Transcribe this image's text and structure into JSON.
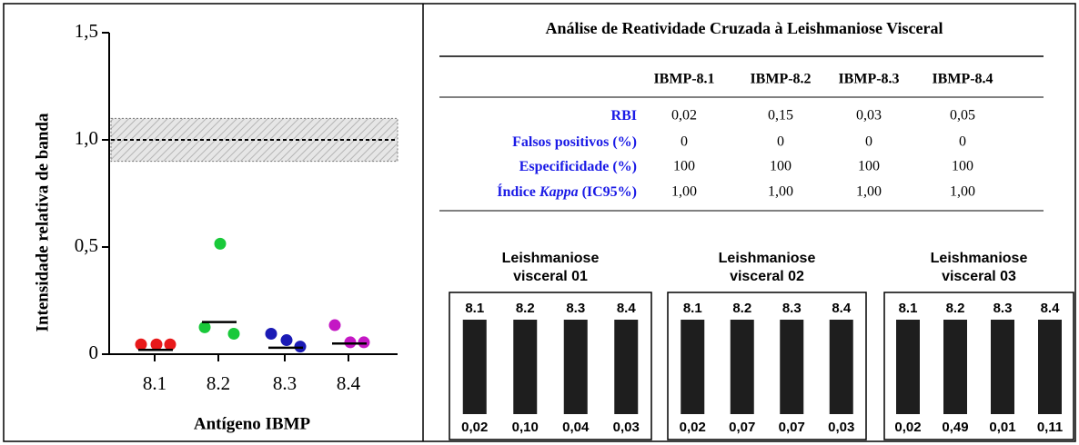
{
  "chart_data": {
    "type": "scatter",
    "y_label": "Intensidade relativa de banda",
    "x_label": "Antígeno IBMP",
    "categories": [
      "8.1",
      "8.2",
      "8.3",
      "8.4"
    ],
    "points": [
      [
        0.02,
        0.02,
        0.02
      ],
      [
        0.1,
        0.49,
        0.07
      ],
      [
        0.07,
        0.04,
        0.01
      ],
      [
        0.11,
        0.03,
        0.03
      ]
    ],
    "colors": [
      "#e8191a",
      "#19c93a",
      "#1a1ab5",
      "#c417c4"
    ],
    "means": [
      0.02,
      0.15,
      0.03,
      0.05
    ],
    "reference_line": 1.0,
    "reference_band": [
      0.9,
      1.1
    ],
    "ylim": [
      0,
      1.5
    ],
    "yticks": [
      0,
      {
        "value": 0.5,
        "label": "0,5"
      },
      {
        "value": 1.0,
        "label": "1,0"
      },
      {
        "value": 1.5,
        "label": "1,5"
      }
    ]
  },
  "table": {
    "title": "Análise de Reatividade Cruzada à Leishmaniose Visceral",
    "columns": [
      "IBMP-8.1",
      "IBMP-8.2",
      "IBMP-8.3",
      "IBMP-8.4"
    ],
    "rows": [
      {
        "label": [
          "RBI"
        ],
        "values": [
          "0,02",
          "0,15",
          "0,03",
          "0,05"
        ]
      },
      {
        "label": [
          "Falsos positivos (%)"
        ],
        "values": [
          "0",
          "0",
          "0",
          "0"
        ]
      },
      {
        "label": [
          "Especificidade (%)"
        ],
        "values": [
          "100",
          "100",
          "100",
          "100"
        ]
      },
      {
        "label": [
          "Índice ",
          "Kappa",
          " (IC95%)"
        ],
        "values": [
          "1,00",
          "1,00",
          "1,00",
          "1,00"
        ]
      }
    ]
  },
  "blots": [
    {
      "title": [
        "Leishmaniose",
        "visceral 01"
      ],
      "lanes": [
        "8.1",
        "8.2",
        "8.3",
        "8.4"
      ],
      "values": [
        "0,02",
        "0,10",
        "0,04",
        "0,03"
      ]
    },
    {
      "title": [
        "Leishmaniose",
        "visceral 02"
      ],
      "lanes": [
        "8.1",
        "8.2",
        "8.3",
        "8.4"
      ],
      "values": [
        "0,02",
        "0,07",
        "0,07",
        "0,03"
      ]
    },
    {
      "title": [
        "Leishmaniose",
        "visceral 03"
      ],
      "lanes": [
        "8.1",
        "8.2",
        "8.3",
        "8.4"
      ],
      "values": [
        "0,02",
        "0,49",
        "0,01",
        "0,11"
      ]
    }
  ]
}
